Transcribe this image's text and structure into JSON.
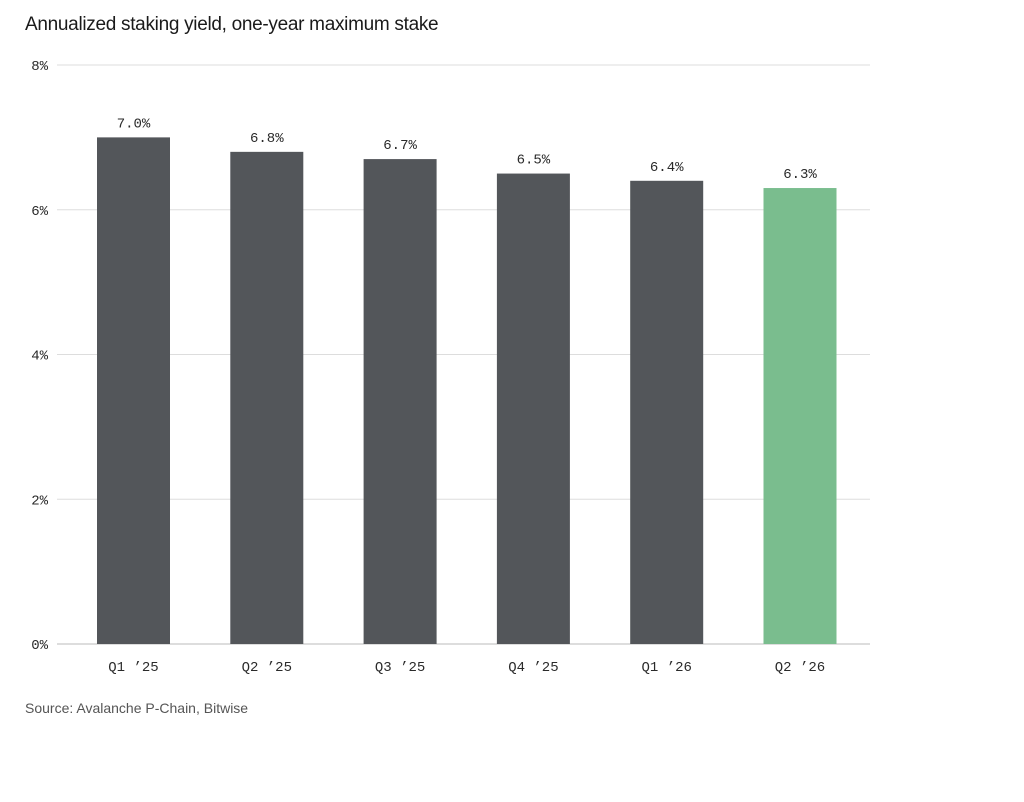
{
  "chart_data": {
    "type": "bar",
    "title": "Annualized staking yield, one-year maximum stake",
    "source": "Source: Avalanche P-Chain, Bitwise",
    "categories": [
      "Q1 ’25",
      "Q2 ’25",
      "Q3 ’25",
      "Q4 ’25",
      "Q1 ’26",
      "Q2 ’26"
    ],
    "values": [
      7.0,
      6.8,
      6.7,
      6.5,
      6.4,
      6.3
    ],
    "value_labels": [
      "7.0%",
      "6.8%",
      "6.7%",
      "6.5%",
      "6.4%",
      "6.3%"
    ],
    "ylim": [
      0,
      8
    ],
    "yticks": [
      0,
      2,
      4,
      6,
      8
    ],
    "ytick_labels": [
      "0%",
      "2%",
      "4%",
      "6%",
      "8%"
    ],
    "xlabel": "",
    "ylabel": "",
    "grid": true,
    "legend": "none",
    "colors": {
      "default_bar": "#53565a",
      "highlight_bar": "#7abd8e",
      "grid": "#dddddd",
      "axis": "#bbbbbb"
    },
    "highlight_index": 5
  }
}
